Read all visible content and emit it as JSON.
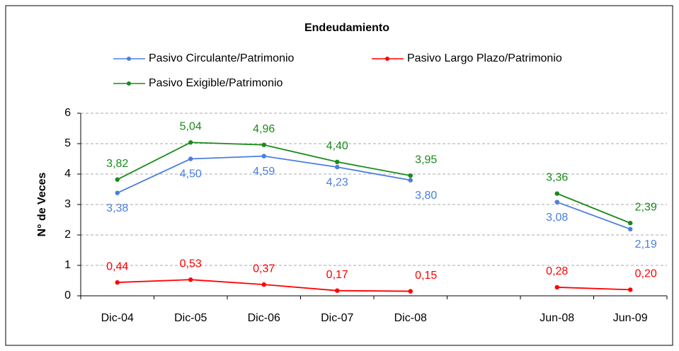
{
  "chart_data": {
    "type": "line",
    "title": "Endeudamiento",
    "y_label": "N° de Veces",
    "categories": [
      "Dic-04",
      "Dic-05",
      "Dic-06",
      "Dic-07",
      "Dic-08",
      null,
      "Jun-08",
      "Jun-09"
    ],
    "series": [
      {
        "name": "Pasivo Circulante/Patrimonio",
        "color": "#4a7ee0",
        "values": [
          3.38,
          4.5,
          4.59,
          4.23,
          3.8,
          null,
          3.08,
          2.19
        ],
        "value_labels": [
          "3,38",
          "4,50",
          "4,59",
          "4,23",
          "3,80",
          null,
          "3,08",
          "2,19"
        ]
      },
      {
        "name": "Pasivo Largo Plazo/Patrimonio",
        "color": "#ff0000",
        "values": [
          0.44,
          0.53,
          0.37,
          0.17,
          0.15,
          null,
          0.28,
          0.2
        ],
        "value_labels": [
          "0,44",
          "0,53",
          "0,37",
          "0,17",
          "0,15",
          null,
          "0,28",
          "0,20"
        ]
      },
      {
        "name": "Pasivo Exigible/Patrimonio",
        "color": "#1a8a1a",
        "values": [
          3.82,
          5.04,
          4.96,
          4.4,
          3.95,
          null,
          3.36,
          2.39
        ],
        "value_labels": [
          "3,82",
          "5,04",
          "4,96",
          "4,40",
          "3,95",
          null,
          "3,36",
          "2,39"
        ]
      }
    ],
    "ylim": [
      0,
      6
    ],
    "yticks": [
      0,
      1,
      2,
      3,
      4,
      5,
      6
    ],
    "grid": true
  }
}
